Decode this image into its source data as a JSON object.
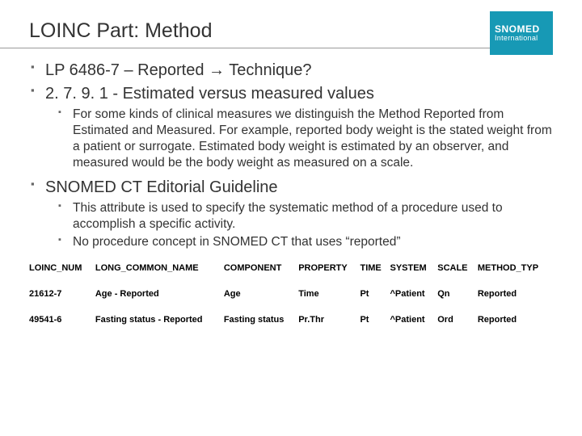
{
  "header": {
    "title": "LOINC Part: Method",
    "logo_line1": "SNOMED",
    "logo_line2": "International",
    "logo_bg": "#1799b5",
    "logo_fg": "#ffffff"
  },
  "bullets": {
    "b1": "LP 6486-7 – Reported → Technique?",
    "b2": "2. 7. 9. 1 - Estimated versus measured values",
    "b2_1": "For some kinds of clinical measures we distinguish the Method Reported from Estimated and Measured. For example, reported body weight is the stated weight from a patient or surrogate. Estimated body weight is estimated by an observer, and measured would be the body weight as measured on a scale.",
    "b3": "SNOMED CT Editorial Guideline",
    "b3_1": "This attribute is used to specify the systematic method of a procedure used to accomplish a specific activity.",
    "b3_2": "No procedure concept in SNOMED CT that uses “reported”"
  },
  "table": {
    "columns": [
      "LOINC_NUM",
      "LONG_COMMON_NAME",
      "COMPONENT",
      "PROPERTY",
      "TIME",
      "SYSTEM",
      "SCALE",
      "METHOD_TYP"
    ],
    "r0": {
      "c0": "21612-7",
      "c1": "Age - Reported",
      "c2": "Age",
      "c3": "Time",
      "c4": "Pt",
      "c5": "^Patient",
      "c6": "Qn",
      "c7": "Reported"
    },
    "r1": {
      "c0": "49541-6",
      "c1": "Fasting status - Reported",
      "c2": "Fasting status",
      "c3": "Pr.Thr",
      "c4": "Pt",
      "c5": "^Patient",
      "c6": "Ord",
      "c7": "Reported"
    }
  },
  "style": {
    "title_fontsize": 25,
    "bullet_l1_fontsize": 20,
    "bullet_l2_fontsize": 15.5,
    "table_fontsize": 11,
    "text_color": "#333333",
    "bullet_marker_color": "#666666",
    "rule_color": "#999999",
    "background": "#ffffff"
  }
}
